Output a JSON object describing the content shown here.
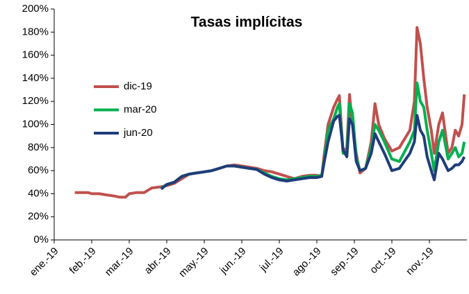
{
  "chart_data": {
    "type": "line",
    "title": "Tasas implícitas",
    "x": [
      0.55,
      0.7,
      0.9,
      1.0,
      1.2,
      1.4,
      1.6,
      1.75,
      1.9,
      2.0,
      2.2,
      2.4,
      2.6,
      2.85,
      3.0,
      3.2,
      3.4,
      3.6,
      3.8,
      4.0,
      4.2,
      4.4,
      4.6,
      4.8,
      5.0,
      5.2,
      5.4,
      5.6,
      5.8,
      6.0,
      6.2,
      6.4,
      6.6,
      6.8,
      7.0,
      7.13,
      7.2,
      7.3,
      7.45,
      7.55,
      7.6,
      7.7,
      7.8,
      7.87,
      7.95,
      8.05,
      8.15,
      8.3,
      8.45,
      8.55,
      8.65,
      8.8,
      9.0,
      9.2,
      9.48,
      9.6,
      9.67,
      9.76,
      9.85,
      9.94,
      10.05,
      10.13,
      10.25,
      10.35,
      10.5,
      10.6,
      10.69,
      10.78,
      10.87,
      10.93
    ],
    "series": [
      {
        "name": "dic-19",
        "color": "#c0504d",
        "values": [
          41,
          41,
          41,
          40,
          40,
          39,
          38,
          37,
          37,
          40,
          41,
          41,
          45,
          46,
          47,
          49,
          53,
          57,
          58,
          59,
          60,
          62,
          64,
          65,
          64,
          63,
          62,
          60,
          59,
          57,
          55,
          53,
          55,
          56,
          56,
          55,
          75,
          100,
          115,
          122,
          125,
          76,
          80,
          126,
          100,
          75,
          58,
          62,
          85,
          118,
          100,
          88,
          77,
          80,
          95,
          120,
          184,
          170,
          140,
          115,
          95,
          75,
          100,
          110,
          75,
          80,
          95,
          90,
          100,
          126
        ]
      },
      {
        "name": "mar-20",
        "color": "#00b050",
        "values": [
          null,
          null,
          null,
          null,
          null,
          null,
          null,
          null,
          null,
          null,
          null,
          null,
          null,
          45,
          48,
          50,
          55,
          57,
          58,
          59,
          60,
          62,
          64,
          64,
          63,
          62,
          61,
          58,
          55,
          53,
          52,
          53,
          54,
          55,
          55,
          56,
          70,
          95,
          105,
          115,
          118,
          75,
          75,
          118,
          110,
          72,
          60,
          62,
          80,
          100,
          95,
          85,
          70,
          68,
          85,
          95,
          136,
          120,
          115,
          95,
          75,
          60,
          85,
          95,
          70,
          75,
          80,
          72,
          75,
          85
        ]
      },
      {
        "name": "jun-20",
        "color": "#1f3d7a",
        "values": [
          null,
          null,
          null,
          null,
          null,
          null,
          null,
          null,
          null,
          null,
          null,
          null,
          null,
          44,
          48,
          50,
          55,
          57,
          58,
          59,
          60,
          62,
          64,
          64,
          63,
          62,
          61,
          57,
          54,
          52,
          51,
          52,
          53,
          54,
          54,
          55,
          68,
          85,
          103,
          107,
          108,
          78,
          72,
          105,
          100,
          68,
          60,
          62,
          75,
          92,
          85,
          75,
          60,
          62,
          75,
          85,
          108,
          95,
          90,
          72,
          60,
          52,
          75,
          70,
          60,
          62,
          65,
          65,
          68,
          72
        ]
      }
    ],
    "xlim": [
      0,
      11
    ],
    "xticks": [
      {
        "value": 0,
        "label": "ene.-19"
      },
      {
        "value": 1,
        "label": "feb.-19"
      },
      {
        "value": 2,
        "label": "mar.-19"
      },
      {
        "value": 3,
        "label": "abr.-19"
      },
      {
        "value": 4,
        "label": "may.-19"
      },
      {
        "value": 5,
        "label": "jun.-19"
      },
      {
        "value": 6,
        "label": "jul.-19"
      },
      {
        "value": 7,
        "label": "ago.-19"
      },
      {
        "value": 8,
        "label": "sep.-19"
      },
      {
        "value": 9,
        "label": "oct.-19"
      },
      {
        "value": 10,
        "label": "nov.-19"
      }
    ],
    "ylim": [
      0,
      200
    ],
    "yticks": [
      {
        "value": 0,
        "label": "0%"
      },
      {
        "value": 20,
        "label": "20%"
      },
      {
        "value": 40,
        "label": "40%"
      },
      {
        "value": 60,
        "label": "60%"
      },
      {
        "value": 80,
        "label": "80%"
      },
      {
        "value": 100,
        "label": "100%"
      },
      {
        "value": 120,
        "label": "120%"
      },
      {
        "value": 140,
        "label": "140%"
      },
      {
        "value": 160,
        "label": "160%"
      },
      {
        "value": 180,
        "label": "180%"
      },
      {
        "value": 200,
        "label": "200%"
      }
    ],
    "grid": false,
    "legend": "left"
  }
}
